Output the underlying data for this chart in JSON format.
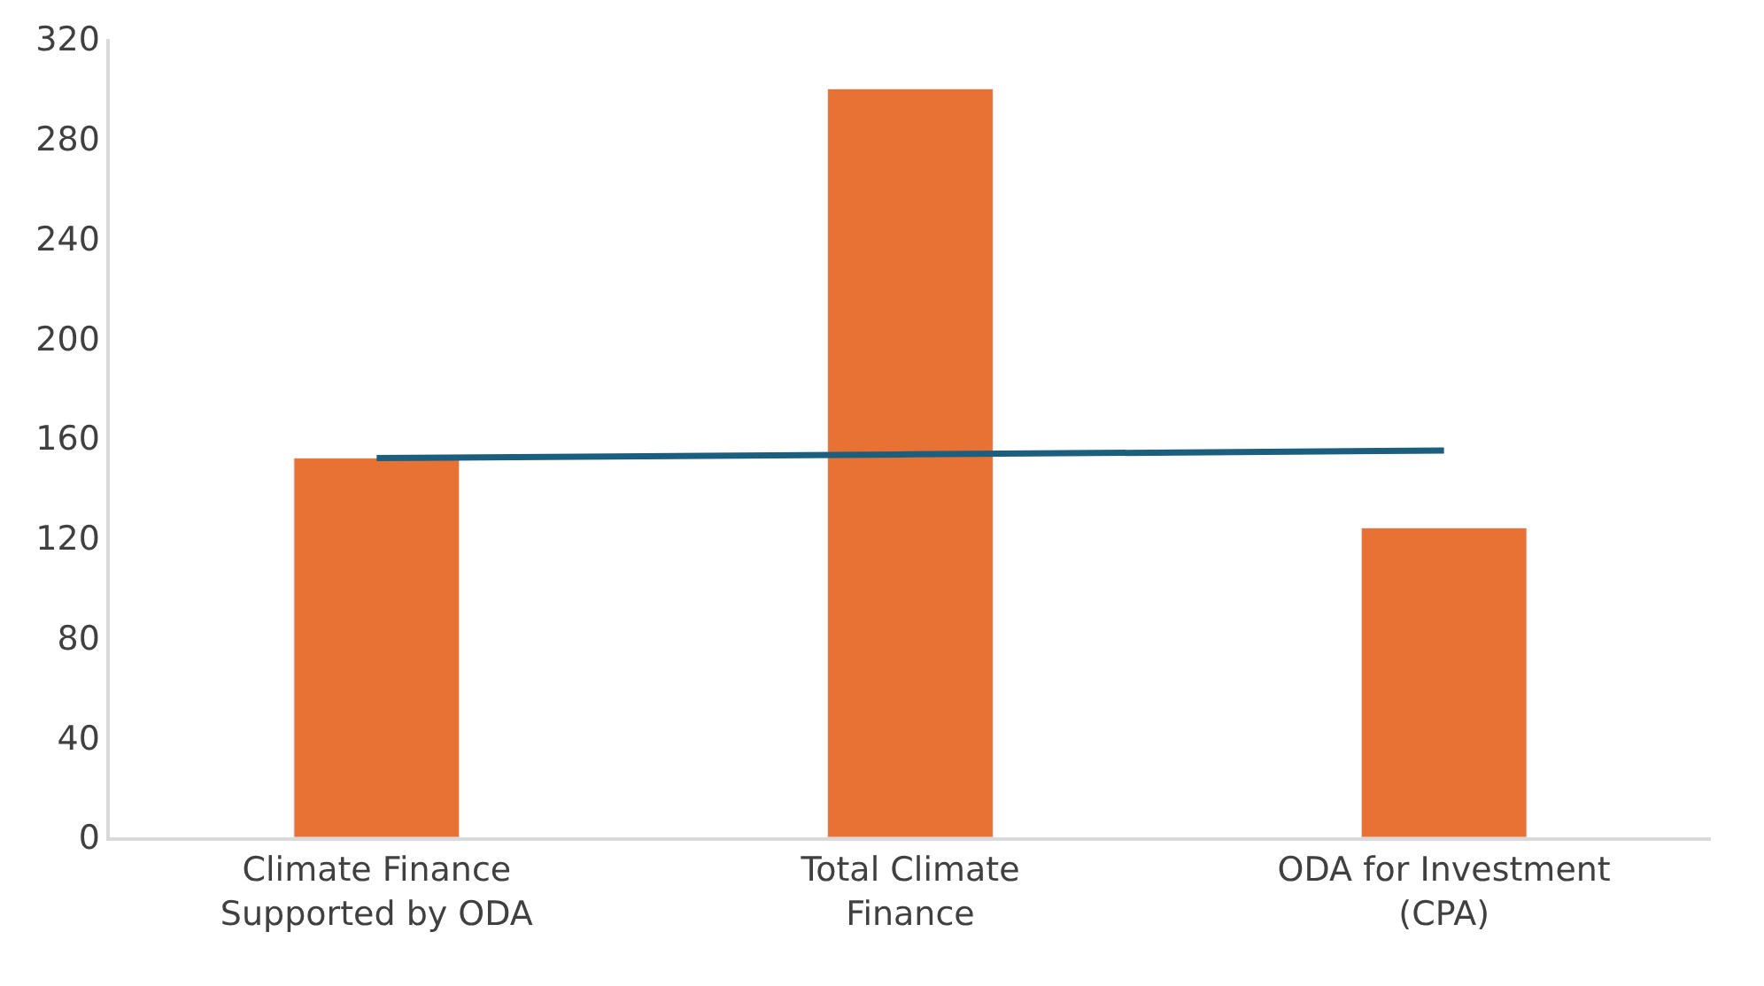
{
  "chart_data": {
    "type": "bar",
    "categories": [
      "Climate Finance Supported by ODA",
      "Total Climate Finance",
      "ODA for Investment (CPA)"
    ],
    "series": [
      {
        "color": "#e87234",
        "values": [
          152,
          300,
          124
        ]
      },
      {
        "type": "line",
        "color": "#1b5e7e",
        "values": [
          152,
          153.5,
          155
        ]
      }
    ],
    "ylim": [
      0,
      320
    ],
    "yticks": [
      0,
      40,
      80,
      120,
      160,
      200,
      240,
      280,
      320
    ]
  }
}
